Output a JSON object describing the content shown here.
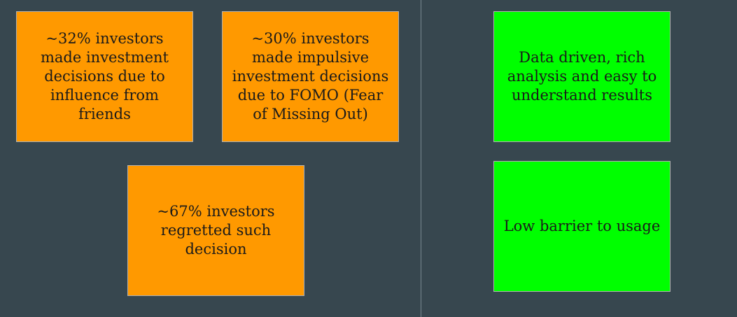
{
  "problems": [
    "~32% investors made investment decisions due to influence from friends",
    "~30% investors made impulsive investment decisions due to FOMO (Fear of Missing Out)",
    "~67% investors regretted such decision"
  ],
  "solutions": [
    "Data driven, rich analysis and easy to understand results",
    "Low barrier to usage"
  ],
  "colors": {
    "background": "#37474f",
    "problem_box": "#ff9900",
    "solution_box": "#00ff00"
  }
}
